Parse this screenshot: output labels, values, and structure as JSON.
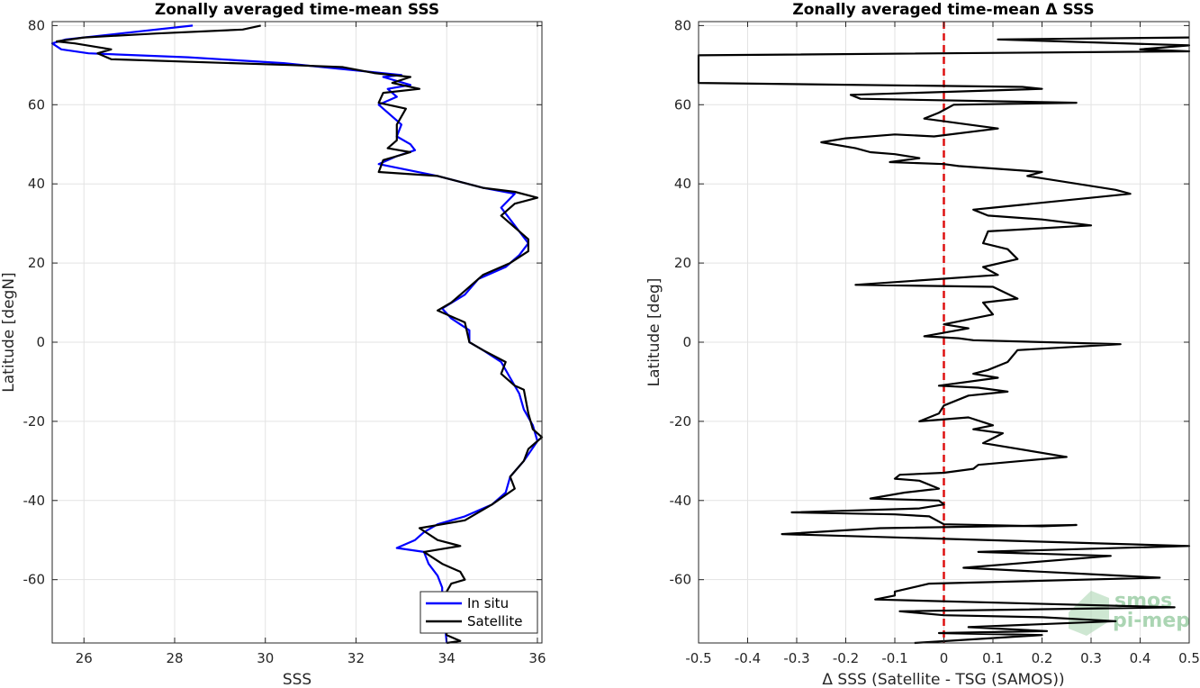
{
  "chart_data": [
    {
      "type": "line",
      "title": "Zonally averaged time-mean SSS",
      "xlabel": "SSS",
      "ylabel": "Latitude [degN]",
      "xlim": [
        25.3,
        36.1
      ],
      "ylim": [
        -76,
        81
      ],
      "xticks": [
        "26",
        "28",
        "30",
        "32",
        "34",
        "36"
      ],
      "yticks": [
        "80",
        "60",
        "40",
        "20",
        "0",
        "-20",
        "-40",
        "-60"
      ],
      "grid": true,
      "legend": "bottom-right",
      "series": [
        {
          "name": "In situ",
          "color": "#0000ff",
          "points": [
            [
              28.4,
              80
            ],
            [
              26.8,
              78
            ],
            [
              25.6,
              76.5
            ],
            [
              25.3,
              75.5
            ],
            [
              25.5,
              74
            ],
            [
              26.1,
              73
            ],
            [
              28.3,
              72
            ],
            [
              30.4,
              70.5
            ],
            [
              33.0,
              67.5
            ],
            [
              32.6,
              67
            ],
            [
              33.2,
              65
            ],
            [
              32.7,
              64
            ],
            [
              32.9,
              62
            ],
            [
              32.5,
              60
            ],
            [
              33.0,
              55
            ],
            [
              32.9,
              52
            ],
            [
              33.2,
              50
            ],
            [
              33.3,
              48.5
            ],
            [
              32.9,
              47
            ],
            [
              32.5,
              45
            ],
            [
              33.8,
              42
            ],
            [
              34.8,
              39
            ],
            [
              35.5,
              37.5
            ],
            [
              35.2,
              34
            ],
            [
              35.4,
              31
            ],
            [
              35.6,
              28
            ],
            [
              35.8,
              25
            ],
            [
              35.6,
              22
            ],
            [
              35.3,
              19
            ],
            [
              34.7,
              16
            ],
            [
              34.4,
              12
            ],
            [
              33.9,
              8.5
            ],
            [
              34.1,
              6
            ],
            [
              34.5,
              3
            ],
            [
              34.5,
              0
            ],
            [
              34.8,
              -2
            ],
            [
              35.2,
              -5
            ],
            [
              35.4,
              -9
            ],
            [
              35.6,
              -13
            ],
            [
              35.7,
              -17
            ],
            [
              35.9,
              -21
            ],
            [
              36.0,
              -25
            ],
            [
              35.7,
              -30
            ],
            [
              35.4,
              -34
            ],
            [
              35.3,
              -38
            ],
            [
              35.0,
              -41
            ],
            [
              34.4,
              -44
            ],
            [
              33.8,
              -46
            ],
            [
              33.5,
              -48
            ],
            [
              33.3,
              -50
            ],
            [
              32.9,
              -52
            ],
            [
              33.5,
              -53
            ],
            [
              33.6,
              -56
            ],
            [
              33.8,
              -59
            ],
            [
              33.9,
              -62
            ],
            [
              33.9,
              -64
            ],
            [
              34.0,
              -76
            ]
          ]
        },
        {
          "name": "Satellite",
          "color": "#000000",
          "points": [
            [
              29.9,
              80
            ],
            [
              29.5,
              79
            ],
            [
              27.6,
              78
            ],
            [
              26.0,
              77
            ],
            [
              25.4,
              76
            ],
            [
              25.8,
              75.5
            ],
            [
              26.6,
              74
            ],
            [
              26.3,
              73
            ],
            [
              26.6,
              71.5
            ],
            [
              30.6,
              70
            ],
            [
              31.7,
              69.5
            ],
            [
              32.4,
              68
            ],
            [
              33.2,
              67
            ],
            [
              32.8,
              65.5
            ],
            [
              33.4,
              64
            ],
            [
              32.6,
              63
            ],
            [
              32.5,
              60.5
            ],
            [
              33.1,
              59
            ],
            [
              32.9,
              55
            ],
            [
              32.9,
              51
            ],
            [
              32.7,
              49
            ],
            [
              33.2,
              48
            ],
            [
              32.6,
              46
            ],
            [
              32.5,
              43
            ],
            [
              33.8,
              42
            ],
            [
              34.8,
              39
            ],
            [
              35.5,
              38
            ],
            [
              36.0,
              36.5
            ],
            [
              35.5,
              35
            ],
            [
              35.2,
              32
            ],
            [
              35.5,
              29
            ],
            [
              35.8,
              26
            ],
            [
              35.8,
              23
            ],
            [
              35.4,
              20
            ],
            [
              34.8,
              17
            ],
            [
              34.4,
              13
            ],
            [
              34.1,
              10
            ],
            [
              33.8,
              8
            ],
            [
              34.4,
              5
            ],
            [
              34.5,
              0
            ],
            [
              34.8,
              -2
            ],
            [
              35.3,
              -5
            ],
            [
              35.2,
              -8
            ],
            [
              35.5,
              -11
            ],
            [
              35.7,
              -12
            ],
            [
              35.8,
              -18
            ],
            [
              35.9,
              -22
            ],
            [
              36.1,
              -24
            ],
            [
              35.8,
              -27
            ],
            [
              35.7,
              -30
            ],
            [
              35.4,
              -34
            ],
            [
              35.5,
              -37
            ],
            [
              35.0,
              -41
            ],
            [
              34.4,
              -45
            ],
            [
              33.9,
              -46
            ],
            [
              33.4,
              -47
            ],
            [
              33.8,
              -50
            ],
            [
              34.3,
              -51.5
            ],
            [
              33.5,
              -53
            ],
            [
              33.9,
              -56
            ],
            [
              34.3,
              -58
            ],
            [
              34.4,
              -60
            ],
            [
              34.1,
              -61
            ],
            [
              34.0,
              -63
            ],
            [
              34.0,
              -74
            ],
            [
              34.3,
              -75.5
            ],
            [
              34.0,
              -76
            ]
          ]
        }
      ]
    },
    {
      "type": "line",
      "title": "Zonally averaged time-mean Δ SSS",
      "xlabel": "Δ SSS (Satellite - TSG (SAMOS))",
      "ylabel": "Latitude [deg]",
      "xlim": [
        -0.5,
        0.5
      ],
      "ylim": [
        -76,
        81
      ],
      "xticks": [
        "-0.5",
        "-0.4",
        "-0.3",
        "-0.2",
        "-0.1",
        "0",
        "0.1",
        "0.2",
        "0.3",
        "0.4",
        "0.5"
      ],
      "yticks": [
        "80",
        "60",
        "40",
        "20",
        "0",
        "-20",
        "-40",
        "-60"
      ],
      "grid": true,
      "zero_line_color": "#dd1111",
      "watermark": [
        "smos",
        "pi-mep"
      ],
      "series": [
        {
          "color": "#000000",
          "points": [
            [
              0.5,
              77
            ],
            [
              0.11,
              76.5
            ],
            [
              0.5,
              75
            ],
            [
              0.4,
              74
            ],
            [
              0.5,
              73.5
            ],
            [
              -0.5,
              72.5
            ],
            [
              -0.5,
              65.5
            ],
            [
              0.16,
              64.5
            ],
            [
              0.2,
              64
            ],
            [
              -0.19,
              62.5
            ],
            [
              -0.17,
              61.5
            ],
            [
              0.27,
              60.5
            ],
            [
              0.02,
              60
            ],
            [
              -0.01,
              58
            ],
            [
              -0.04,
              56.5
            ],
            [
              0.05,
              55
            ],
            [
              0.11,
              54
            ],
            [
              -0.02,
              52
            ],
            [
              -0.1,
              52.5
            ],
            [
              -0.2,
              51.5
            ],
            [
              -0.25,
              50.5
            ],
            [
              -0.18,
              49
            ],
            [
              -0.15,
              48
            ],
            [
              -0.1,
              47.5
            ],
            [
              -0.05,
              46.5
            ],
            [
              -0.11,
              45.5
            ],
            [
              0.0,
              45
            ],
            [
              0.03,
              44.5
            ],
            [
              0.2,
              43
            ],
            [
              0.17,
              42
            ],
            [
              0.35,
              38.5
            ],
            [
              0.38,
              37.5
            ],
            [
              0.1,
              34
            ],
            [
              0.06,
              33.5
            ],
            [
              0.09,
              32
            ],
            [
              0.2,
              31
            ],
            [
              0.3,
              29.5
            ],
            [
              0.09,
              28
            ],
            [
              0.08,
              25
            ],
            [
              0.13,
              23.5
            ],
            [
              0.15,
              21
            ],
            [
              0.08,
              19
            ],
            [
              0.11,
              17
            ],
            [
              -0.18,
              14.5
            ],
            [
              0.1,
              14
            ],
            [
              0.15,
              11
            ],
            [
              0.08,
              10
            ],
            [
              0.1,
              7
            ],
            [
              0.0,
              4.5
            ],
            [
              0.05,
              3.5
            ],
            [
              -0.04,
              1.5
            ],
            [
              0.03,
              1
            ],
            [
              0.06,
              0.5
            ],
            [
              0.36,
              -0.5
            ],
            [
              0.15,
              -2
            ],
            [
              0.13,
              -5
            ],
            [
              0.09,
              -7
            ],
            [
              0.06,
              -8
            ],
            [
              0.11,
              -9
            ],
            [
              -0.01,
              -11
            ],
            [
              0.07,
              -11.5
            ],
            [
              0.13,
              -12.5
            ],
            [
              0.05,
              -13.5
            ],
            [
              0.0,
              -16
            ],
            [
              -0.01,
              -18
            ],
            [
              -0.05,
              -20
            ],
            [
              0.05,
              -19
            ],
            [
              0.1,
              -21
            ],
            [
              0.06,
              -22
            ],
            [
              0.12,
              -23
            ],
            [
              0.08,
              -25.5
            ],
            [
              0.25,
              -29
            ],
            [
              0.07,
              -31
            ],
            [
              0.06,
              -32
            ],
            [
              0.0,
              -33
            ],
            [
              -0.09,
              -33.5
            ],
            [
              -0.1,
              -34.5
            ],
            [
              -0.05,
              -35
            ],
            [
              -0.01,
              -37
            ],
            [
              -0.08,
              -38
            ],
            [
              -0.15,
              -39.5
            ],
            [
              -0.01,
              -40
            ],
            [
              0.0,
              -41
            ],
            [
              -0.05,
              -42
            ],
            [
              -0.31,
              -43
            ],
            [
              -0.1,
              -43.5
            ],
            [
              -0.03,
              -44
            ],
            [
              0.0,
              -46
            ],
            [
              0.2,
              -46.5
            ],
            [
              0.27,
              -46.2
            ],
            [
              -0.13,
              -47
            ],
            [
              -0.33,
              -48.5
            ],
            [
              0.5,
              -51.5
            ],
            [
              0.07,
              -53
            ],
            [
              0.34,
              -54
            ],
            [
              0.04,
              -57
            ],
            [
              0.44,
              -59.5
            ],
            [
              -0.03,
              -61
            ],
            [
              -0.1,
              -63
            ],
            [
              -0.1,
              -64
            ],
            [
              -0.14,
              -65
            ],
            [
              0.47,
              -67
            ],
            [
              -0.09,
              -68
            ],
            [
              0.0,
              -69
            ],
            [
              0.2,
              -69.5
            ],
            [
              0.35,
              -70.5
            ],
            [
              0.05,
              -72
            ],
            [
              0.21,
              -73
            ],
            [
              -0.01,
              -73.5
            ],
            [
              0.2,
              -74
            ],
            [
              -0.06,
              -76
            ]
          ]
        }
      ]
    }
  ]
}
